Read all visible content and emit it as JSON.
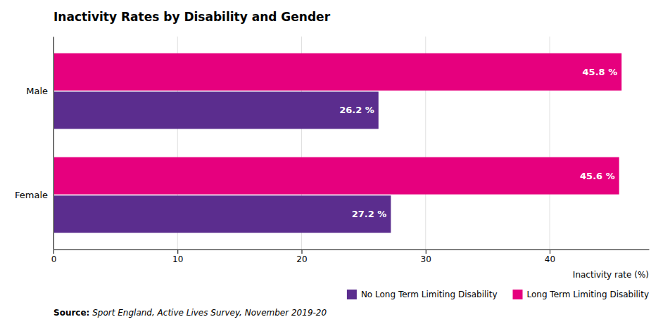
{
  "chart_data": {
    "type": "bar",
    "orientation": "horizontal",
    "title": "Inactivity Rates by Disability and Gender",
    "categories": [
      "Female",
      "Male"
    ],
    "series": [
      {
        "name": "No Long Term Limiting Disability",
        "color": "#5b2d8e",
        "values": [
          27.2,
          26.2
        ],
        "value_labels": [
          "27.2 %",
          "26.2 %"
        ]
      },
      {
        "name": "Long Term Limiting Disability",
        "color": "#e6007e",
        "values": [
          45.6,
          45.8
        ],
        "value_labels": [
          "45.6 %",
          "45.8 %"
        ]
      }
    ],
    "xlabel": "Inactivity rate (%)",
    "xlim": [
      0,
      48
    ],
    "xticks": [
      0,
      10,
      20,
      30,
      40
    ],
    "grid": true,
    "legend": "lower right",
    "data_labels": true,
    "annotations": [
      "Source:",
      " Sport England, Active Lives Survey, November 2019-20"
    ]
  }
}
